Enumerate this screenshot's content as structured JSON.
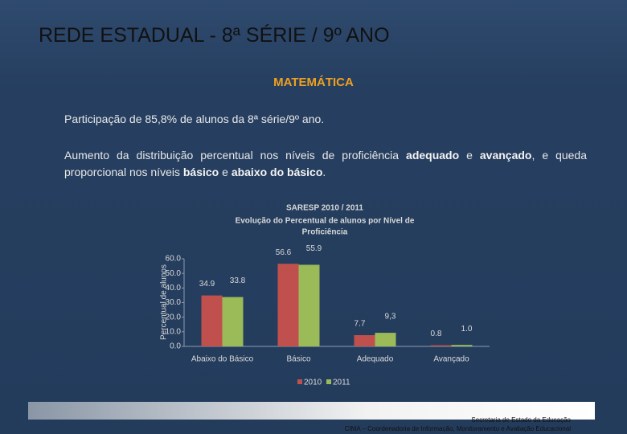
{
  "slide": {
    "title": "REDE ESTADUAL - 8ª SÉRIE / 9º ANO",
    "subject": "MATEMÁTICA",
    "paragraph1": "Participação de 85,8% de alunos da 8ª série/9º ano.",
    "paragraph2": [
      {
        "text": "Aumento da distribuição percentual nos níveis de proficiência ",
        "bold": false
      },
      {
        "text": "adequado",
        "bold": true
      },
      {
        "text": " e ",
        "bold": false
      },
      {
        "text": "avançado",
        "bold": true
      },
      {
        "text": ", e queda proporcional nos níveis ",
        "bold": false
      },
      {
        "text": "básico",
        "bold": true
      },
      {
        "text": " e ",
        "bold": false
      },
      {
        "text": "abaixo do básico",
        "bold": true
      },
      {
        "text": ".",
        "bold": false
      }
    ],
    "footer": [
      "Secretaria de Estado da Educação",
      "CIMA – Coordenadoria de Informação, Monitoramento e Avaliação Educacional"
    ]
  },
  "chart_data": {
    "type": "bar",
    "title": "SARESP 2010 / 2011",
    "subtitle": [
      "Evolução do Percentual de alunos por Nível de",
      "Proficiência"
    ],
    "y_label": "Percentual de alunos",
    "categories": [
      "Abaixo do Básico",
      "Básico",
      "Adequado",
      "Avançado"
    ],
    "series": [
      {
        "name": "2010",
        "color": "#c0504d",
        "values": [
          34.9,
          56.6,
          7.7,
          0.8
        ],
        "value_labels": [
          "34.9",
          "56.6",
          "7.7",
          "0.8"
        ]
      },
      {
        "name": "2011",
        "color": "#9bbb59",
        "values": [
          33.8,
          55.9,
          9.3,
          1.0
        ],
        "value_labels": [
          "33.8",
          "55.9",
          "9,3",
          "1.0"
        ]
      }
    ],
    "ylim": [
      0,
      60
    ],
    "yticks": [
      {
        "value": 0,
        "label": "0.0"
      },
      {
        "value": 10,
        "label": "10.0"
      },
      {
        "value": 20,
        "label": "20.0"
      },
      {
        "value": 30,
        "label": "30.0"
      },
      {
        "value": 40,
        "label": "40.0"
      },
      {
        "value": 50,
        "label": "50.0"
      },
      {
        "value": 60,
        "label": "60.0"
      }
    ],
    "grid": false,
    "legend": "bottom"
  }
}
